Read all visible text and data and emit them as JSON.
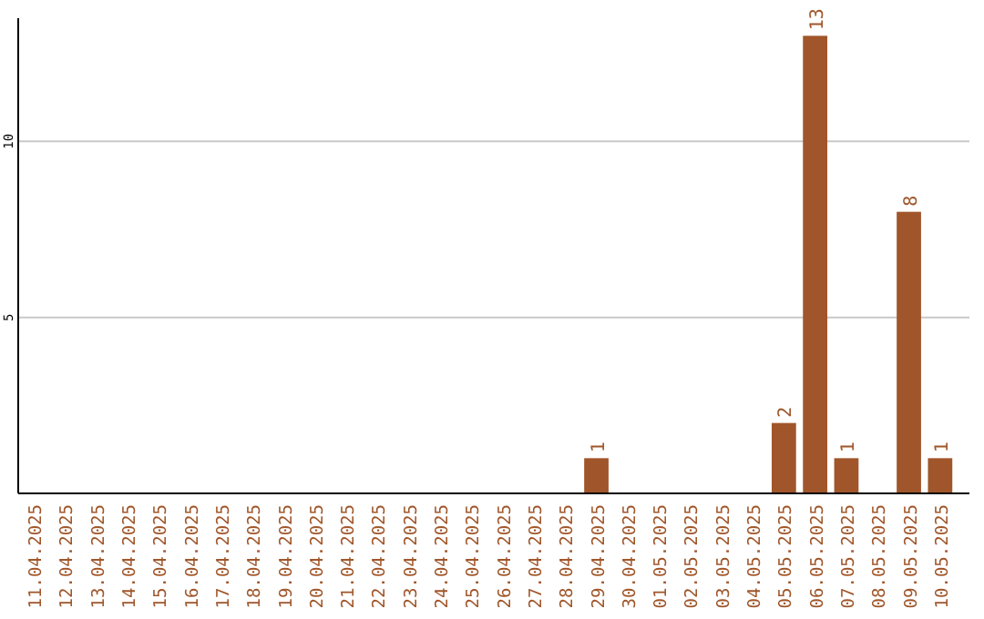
{
  "chart_data": {
    "type": "bar",
    "categories": [
      "11.04.2025",
      "12.04.2025",
      "13.04.2025",
      "14.04.2025",
      "15.04.2025",
      "16.04.2025",
      "17.04.2025",
      "18.04.2025",
      "19.04.2025",
      "20.04.2025",
      "21.04.2025",
      "22.04.2025",
      "23.04.2025",
      "24.04.2025",
      "25.04.2025",
      "26.04.2025",
      "27.04.2025",
      "28.04.2025",
      "29.04.2025",
      "30.04.2025",
      "01.05.2025",
      "02.05.2025",
      "03.05.2025",
      "04.05.2025",
      "05.05.2025",
      "06.05.2025",
      "07.05.2025",
      "08.05.2025",
      "09.05.2025",
      "10.05.2025"
    ],
    "values": [
      0,
      0,
      0,
      0,
      0,
      0,
      0,
      0,
      0,
      0,
      0,
      0,
      0,
      0,
      0,
      0,
      0,
      0,
      1,
      0,
      0,
      0,
      0,
      0,
      2,
      13,
      1,
      0,
      8,
      1
    ],
    "value_labels": [
      null,
      null,
      null,
      null,
      null,
      null,
      null,
      null,
      null,
      null,
      null,
      null,
      null,
      null,
      null,
      null,
      null,
      null,
      "1",
      null,
      null,
      null,
      null,
      null,
      "2",
      "13",
      "1",
      null,
      "8",
      "1"
    ],
    "color": "#a0562a",
    "ylim": [
      0,
      13.5
    ],
    "yticks": [
      5,
      10
    ],
    "grid": "y"
  }
}
